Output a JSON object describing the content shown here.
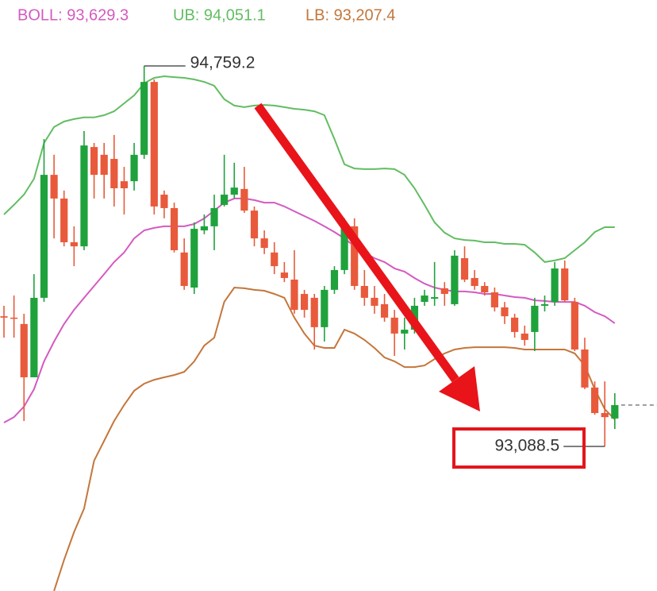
{
  "chart_data": {
    "type": "candlestick",
    "ylim": [
      92453.6,
      95048.7
    ],
    "up_color": "#1fa23c",
    "down_color": "#e85a3b",
    "open": [
      93660,
      93654,
      93626,
      93392,
      93741,
      94281,
      94177,
      93985,
      93967,
      94403,
      94369,
      94351,
      94253,
      94253,
      94369,
      94689,
      94194,
      94135,
      93940,
      93786,
      94037,
      94055,
      94149,
      94194,
      94219,
      94124,
      94002,
      93940,
      93852,
      93821,
      93758,
      93741,
      93612,
      93776,
      93863,
      94055,
      93793,
      93741,
      93713,
      93654,
      93584,
      93601,
      93723,
      93737,
      93783,
      93713,
      93915,
      93828,
      93793,
      93765,
      93699,
      93654,
      93584,
      93591,
      93706,
      93723,
      93870,
      93723,
      93514,
      93347,
      93235,
      93211
    ],
    "high": [
      93706,
      93751,
      93671,
      93845,
      94438,
      94369,
      94212,
      94055,
      94473,
      94421,
      94421,
      94456,
      94316,
      94421,
      94759.2,
      94700,
      94212,
      94159,
      94002,
      94072,
      94107,
      94194,
      94369,
      94334,
      94316,
      94142,
      94037,
      93985,
      93898,
      93950,
      93776,
      93758,
      93793,
      93880,
      94090,
      94090,
      93863,
      93793,
      93758,
      93688,
      93654,
      93741,
      93776,
      93898,
      93810,
      93950,
      93967,
      93863,
      93810,
      93786,
      93723,
      93671,
      93619,
      93741,
      93751,
      93898,
      93905,
      93741,
      93566,
      93374,
      93374,
      93322
    ],
    "low": [
      93566,
      93566,
      93200,
      93392,
      93723,
      94002,
      93967,
      93880,
      93950,
      94177,
      94177,
      94142,
      94107,
      94212,
      94351,
      94107,
      94090,
      93940,
      93776,
      93758,
      94020,
      93950,
      94142,
      94177,
      94114,
      93967,
      93933,
      93845,
      93810,
      93671,
      93654,
      93514,
      93549,
      93758,
      93845,
      93776,
      93706,
      93671,
      93636,
      93486,
      93514,
      93584,
      93706,
      93706,
      93706,
      93706,
      93810,
      93776,
      93751,
      93681,
      93626,
      93566,
      93531,
      93507,
      93681,
      93706,
      93723,
      93507,
      93340,
      93228,
      93088.5,
      93165
    ],
    "close": [
      93654,
      93650,
      93392,
      93741,
      94281,
      94177,
      93985,
      93967,
      94410,
      94281,
      94281,
      94222,
      94222,
      94369,
      94689,
      94142,
      94135,
      93950,
      93793,
      94044,
      94055,
      94135,
      94194,
      94225,
      94124,
      94002,
      93960,
      93880,
      93828,
      93688,
      93688,
      93612,
      93776,
      93863,
      94055,
      93793,
      93741,
      93706,
      93654,
      93584,
      93601,
      93706,
      93751,
      93744,
      93758,
      93926,
      93821,
      93793,
      93765,
      93699,
      93660,
      93591,
      93556,
      93706,
      93713,
      93870,
      93730,
      93514,
      93347,
      93235,
      93217,
      93270
    ],
    "series": [
      {
        "name": "UB: 94,051.1",
        "color": "#62bd62",
        "values": [
          94107,
          94149,
          94194,
          94264,
          94421,
          94491,
          94515,
          94526,
          94533,
          94533,
          94543,
          94560,
          94595,
          94630,
          94683,
          94707,
          94714,
          94710,
          94707,
          94700,
          94689,
          94672,
          94613,
          94585,
          94578,
          94585,
          94588,
          94585,
          94578,
          94571,
          94567,
          94560,
          94543,
          94438,
          94327,
          94309,
          94306,
          94306,
          94309,
          94306,
          94281,
          94222,
          94149,
          94072,
          94027,
          94002,
          93995,
          93992,
          93985,
          93985,
          93978,
          93978,
          93974,
          93940,
          93898,
          93905,
          93915,
          93950,
          93985,
          94030,
          94051,
          94051.1
        ]
      },
      {
        "name": "BOLL: 93,629.3",
        "color": "#d45ac0",
        "values": [
          93193,
          93217,
          93263,
          93340,
          93462,
          93549,
          93626,
          93688,
          93741,
          93793,
          93845,
          93898,
          93940,
          94002,
          94037,
          94048,
          94055,
          94055,
          94055,
          94065,
          94090,
          94124,
          94159,
          94177,
          94177,
          94170,
          94159,
          94159,
          94142,
          94121,
          94100,
          94079,
          94055,
          94030,
          94002,
          93967,
          93940,
          93915,
          93898,
          93870,
          93856,
          93828,
          93803,
          93786,
          93776,
          93769,
          93769,
          93765,
          93758,
          93758,
          93751,
          93744,
          93741,
          93730,
          93727,
          93723,
          93723,
          93723,
          93706,
          93678,
          93660,
          93629.3
        ]
      },
      {
        "name": "LB: 93,207.4",
        "color": "#c4763a",
        "values": [
          null,
          null,
          null,
          null,
          null,
          92454,
          92590,
          92712,
          92816,
          93026,
          93113,
          93200,
          93270,
          93333,
          93364,
          93381,
          93392,
          93402,
          93416,
          93462,
          93531,
          93566,
          93723,
          93786,
          93783,
          93776,
          93772,
          93758,
          93741,
          93654,
          93584,
          93531,
          93521,
          93521,
          93601,
          93584,
          93556,
          93521,
          93479,
          93462,
          93437,
          93437,
          93444,
          93472,
          93497,
          93514,
          93521,
          93524,
          93524,
          93524,
          93524,
          93521,
          93514,
          93514,
          93514,
          93514,
          93514,
          93497,
          93444,
          93340,
          93252,
          93207.4
        ]
      }
    ],
    "annotations": [
      {
        "value": 94759.2,
        "label": "94,759.2"
      },
      {
        "value": 93088.5,
        "label": "93,088.5"
      }
    ]
  }
}
